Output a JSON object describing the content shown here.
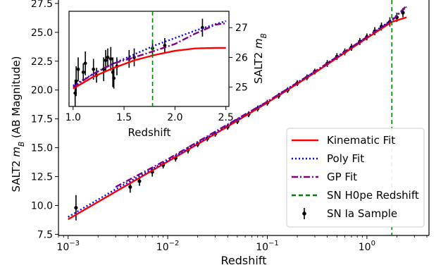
{
  "chart_data": [
    {
      "type": "scatter",
      "panel": "main",
      "xlabel": "Redshift",
      "ylabel": "SALT2 m_B (AB Magnitude)",
      "xscale": "log",
      "xlim": [
        0.0008,
        4.2
      ],
      "ylim": [
        7.4,
        27.8
      ],
      "x_ticks": [
        {
          "value": 0.001,
          "base": "10",
          "exp": "−3"
        },
        {
          "value": 0.01,
          "base": "10",
          "exp": "−2"
        },
        {
          "value": 0.1,
          "base": "10",
          "exp": "−1"
        },
        {
          "value": 1,
          "base": "10",
          "exp": "0"
        }
      ],
      "y_ticks": [
        "7.5",
        "10.0",
        "12.5",
        "15.0",
        "17.5",
        "20.0",
        "22.5",
        "25.0",
        "27.5"
      ],
      "vline_x": 1.78,
      "legend_position": "lower right",
      "series": [
        {
          "name": "Kinematic Fit",
          "style": "solid",
          "color": "#ff0000",
          "x": [
            0.001,
            0.003,
            0.01,
            0.03,
            0.1,
            0.3,
            1.0,
            1.78,
            2.5
          ],
          "y": [
            8.8,
            11.2,
            13.8,
            16.2,
            18.9,
            21.5,
            24.5,
            25.9,
            26.3
          ]
        },
        {
          "name": "Poly Fit",
          "style": "dotted",
          "color": "#0000ff",
          "x": [
            0.001,
            0.003,
            0.01,
            0.03,
            0.1,
            0.3,
            1.0,
            1.78,
            2.5
          ],
          "y": [
            9.0,
            11.4,
            13.9,
            16.3,
            19.0,
            21.6,
            24.6,
            26.1,
            27.2
          ]
        },
        {
          "name": "GP Fit",
          "style": "dashdot",
          "color": "#800080",
          "x": [
            0.003,
            0.01,
            0.03,
            0.1,
            0.3,
            1.0,
            1.78,
            2.5
          ],
          "y": [
            11.6,
            14.0,
            16.4,
            19.0,
            21.6,
            24.6,
            26.0,
            27.3
          ]
        },
        {
          "name": "SN H0pe Redshift",
          "style": "dashed",
          "color": "#008000",
          "x": [
            1.78
          ]
        },
        {
          "name": "SN Ia Sample",
          "style": "errorbar",
          "color": "#000000",
          "points": [
            {
              "x": 0.0012,
              "y": 9.8,
              "err": 1.1
            },
            {
              "x": 0.0042,
              "y": 11.6,
              "err": 0.5
            },
            {
              "x": 0.0052,
              "y": 12.1,
              "err": 0.4
            },
            {
              "x": 0.007,
              "y": 12.9,
              "err": 0.4
            },
            {
              "x": 0.009,
              "y": 13.5,
              "err": 0.3
            },
            {
              "x": 0.012,
              "y": 14.1,
              "err": 0.3
            },
            {
              "x": 0.016,
              "y": 14.8,
              "err": 0.3
            },
            {
              "x": 0.02,
              "y": 15.3,
              "err": 0.25
            },
            {
              "x": 0.025,
              "y": 15.8,
              "err": 0.25
            },
            {
              "x": 0.03,
              "y": 16.2,
              "err": 0.25
            },
            {
              "x": 0.04,
              "y": 16.8,
              "err": 0.25
            },
            {
              "x": 0.05,
              "y": 17.3,
              "err": 0.25
            },
            {
              "x": 0.065,
              "y": 17.9,
              "err": 0.25
            },
            {
              "x": 0.08,
              "y": 18.4,
              "err": 0.25
            },
            {
              "x": 0.1,
              "y": 18.9,
              "err": 0.25
            },
            {
              "x": 0.13,
              "y": 19.5,
              "err": 0.25
            },
            {
              "x": 0.16,
              "y": 20.0,
              "err": 0.25
            },
            {
              "x": 0.2,
              "y": 20.6,
              "err": 0.25
            },
            {
              "x": 0.25,
              "y": 21.1,
              "err": 0.25
            },
            {
              "x": 0.3,
              "y": 21.6,
              "err": 0.25
            },
            {
              "x": 0.4,
              "y": 22.3,
              "err": 0.3
            },
            {
              "x": 0.5,
              "y": 22.9,
              "err": 0.3
            },
            {
              "x": 0.6,
              "y": 23.3,
              "err": 0.3
            },
            {
              "x": 0.7,
              "y": 23.7,
              "err": 0.3
            },
            {
              "x": 0.85,
              "y": 24.2,
              "err": 0.3
            },
            {
              "x": 1.0,
              "y": 24.6,
              "err": 0.3
            },
            {
              "x": 1.2,
              "y": 25.1,
              "err": 0.35
            },
            {
              "x": 1.4,
              "y": 25.5,
              "err": 0.35
            },
            {
              "x": 1.7,
              "y": 25.9,
              "err": 0.4
            },
            {
              "x": 2.0,
              "y": 26.3,
              "err": 0.4
            },
            {
              "x": 2.3,
              "y": 26.7,
              "err": 0.4
            }
          ]
        }
      ]
    },
    {
      "type": "scatter",
      "panel": "inset",
      "xlabel": "Redshift",
      "ylabel": "SALT2 m_B",
      "xlim": [
        0.96,
        2.53
      ],
      "ylim": [
        24.35,
        27.55
      ],
      "x_ticks": [
        "1.0",
        "1.5",
        "2.0",
        "2.5"
      ],
      "y_ticks": [
        "25",
        "26",
        "27"
      ],
      "vline_x": 1.78,
      "series": [
        {
          "name": "Kinematic Fit",
          "style": "solid",
          "color": "#ff0000",
          "x": [
            1.0,
            1.2,
            1.4,
            1.6,
            1.8,
            2.0,
            2.2,
            2.4,
            2.5
          ],
          "y": [
            24.95,
            25.35,
            25.65,
            25.9,
            26.08,
            26.22,
            26.3,
            26.32,
            26.32
          ]
        },
        {
          "name": "Poly Fit",
          "style": "dotted",
          "color": "#0000ff",
          "x": [
            1.0,
            1.2,
            1.4,
            1.6,
            1.8,
            2.0,
            2.2,
            2.4,
            2.5
          ],
          "y": [
            25.05,
            25.45,
            25.8,
            26.1,
            26.4,
            26.65,
            26.9,
            27.12,
            27.22
          ]
        },
        {
          "name": "GP Fit",
          "style": "dashdot",
          "color": "#800080",
          "x": [
            1.0,
            1.2,
            1.4,
            1.6,
            1.8,
            2.0,
            2.2,
            2.4,
            2.5
          ],
          "y": [
            25.0,
            25.45,
            25.8,
            26.0,
            26.22,
            26.45,
            26.8,
            27.1,
            27.15
          ]
        },
        {
          "name": "SN Ia Sample",
          "style": "errorbar",
          "color": "#000000",
          "points": [
            {
              "x": 1.02,
              "y": 24.8,
              "err": 0.45
            },
            {
              "x": 1.03,
              "y": 25.2,
              "err": 0.5
            },
            {
              "x": 1.05,
              "y": 25.6,
              "err": 0.4
            },
            {
              "x": 1.1,
              "y": 25.5,
              "err": 0.3
            },
            {
              "x": 1.12,
              "y": 25.8,
              "err": 0.4
            },
            {
              "x": 1.2,
              "y": 25.6,
              "err": 0.35
            },
            {
              "x": 1.23,
              "y": 25.4,
              "err": 0.25
            },
            {
              "x": 1.3,
              "y": 25.6,
              "err": 0.4
            },
            {
              "x": 1.32,
              "y": 25.9,
              "err": 0.35
            },
            {
              "x": 1.34,
              "y": 26.0,
              "err": 0.3
            },
            {
              "x": 1.37,
              "y": 25.95,
              "err": 0.4
            },
            {
              "x": 1.39,
              "y": 25.5,
              "err": 0.5
            },
            {
              "x": 1.4,
              "y": 25.3,
              "err": 0.35
            },
            {
              "x": 1.43,
              "y": 25.7,
              "err": 0.3
            },
            {
              "x": 1.55,
              "y": 25.95,
              "err": 0.3
            },
            {
              "x": 1.6,
              "y": 26.0,
              "err": 0.3
            },
            {
              "x": 1.78,
              "y": 26.3,
              "err": 0.25
            },
            {
              "x": 1.9,
              "y": 26.4,
              "err": 0.25
            },
            {
              "x": 2.27,
              "y": 27.0,
              "err": 0.3
            }
          ]
        }
      ]
    }
  ]
}
